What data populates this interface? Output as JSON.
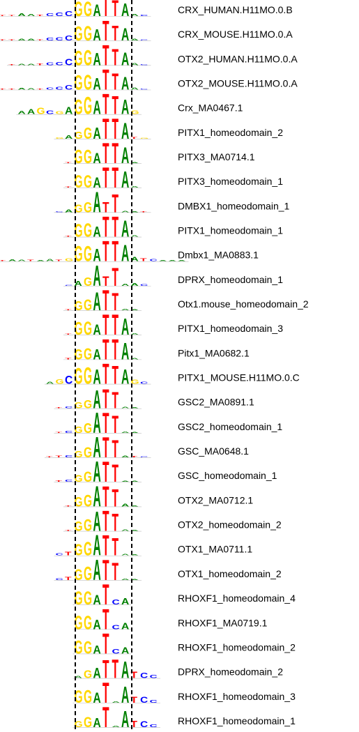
{
  "colors": {
    "A": "#008000",
    "C": "#0000ff",
    "G": "#ffd700",
    "T": "#ff0000",
    "baseline": "#444444"
  },
  "motifs": [
    {
      "label": "CRX_HUMAN.H11MO.0.B",
      "sequence": "ttaatcccGGATTAac",
      "heights": [
        0.03,
        0.05,
        0.12,
        0.1,
        0.06,
        0.14,
        0.18,
        0.25,
        0.72,
        0.72,
        0.58,
        1.0,
        0.78,
        0.62,
        0.1,
        0.06
      ]
    },
    {
      "label": "CRX_MOUSE.H11MO.0.A",
      "sequence": "ttaatcccGGATTAac",
      "heights": [
        0.02,
        0.04,
        0.08,
        0.08,
        0.05,
        0.12,
        0.16,
        0.24,
        0.68,
        0.72,
        0.56,
        0.98,
        0.74,
        0.6,
        0.08,
        0.05
      ]
    },
    {
      "label": "OTX2_HUMAN.H11MO.0.A",
      "sequence": "taatcccGGATTAac",
      "heights": [
        0.03,
        0.06,
        0.06,
        0.08,
        0.12,
        0.16,
        0.3,
        0.7,
        0.76,
        0.6,
        1.0,
        0.8,
        0.62,
        0.1,
        0.05
      ]
    },
    {
      "label": "OTX2_MOUSE.H11MO.0.A",
      "sequence": "ttaatcccGGATTAac",
      "heights": [
        0.03,
        0.05,
        0.08,
        0.06,
        0.05,
        0.1,
        0.14,
        0.22,
        0.7,
        0.74,
        0.58,
        1.0,
        0.8,
        0.62,
        0.1,
        0.05
      ]
    },
    {
      "label": "Crx_MA0467.1",
      "sequence": "aagcgaGGATTAg",
      "heights": [
        0.15,
        0.25,
        0.3,
        0.18,
        0.14,
        0.36,
        0.72,
        0.84,
        0.66,
        1.0,
        0.9,
        0.7,
        0.18
      ]
    },
    {
      "label": "PITX1_homeodomain_2",
      "sequence": "gagGATTAtg",
      "heights": [
        0.06,
        0.18,
        0.35,
        0.55,
        0.55,
        1.0,
        1.0,
        0.78,
        0.08,
        0.05
      ]
    },
    {
      "label": "PITX3_MA0714.1",
      "sequence": "tgGATTAa",
      "heights": [
        0.05,
        0.66,
        0.66,
        0.5,
        1.0,
        1.0,
        0.78,
        0.05
      ]
    },
    {
      "label": "PITX3_homeodomain_1",
      "sequence": "tgGATTAa",
      "heights": [
        0.05,
        0.6,
        0.6,
        0.5,
        1.0,
        1.0,
        0.8,
        0.06
      ]
    },
    {
      "label": "DMBX1_homeodomain_1",
      "sequence": "cagGATTAat",
      "heights": [
        0.04,
        0.12,
        0.38,
        0.52,
        1.0,
        0.5,
        0.9,
        0.06,
        0.05,
        0.03
      ]
    },
    {
      "label": "PITX1_homeodomain_1",
      "sequence": "tgGATTAa",
      "heights": [
        0.05,
        0.62,
        0.66,
        0.5,
        1.0,
        1.0,
        0.8,
        0.06
      ]
    },
    {
      "label": "Dmbx1_MA0883.1",
      "sequence": "ctaataatgGGATTAatcaaa",
      "heights": [
        0.06,
        0.05,
        0.08,
        0.06,
        0.06,
        0.04,
        0.1,
        0.06,
        0.12,
        0.76,
        0.76,
        0.6,
        1.0,
        1.0,
        0.8,
        0.2,
        0.14,
        0.1,
        0.05,
        0.04,
        0.03
      ]
    },
    {
      "label": "DPRX_homeodomain_1",
      "sequence": "cagATTAac",
      "heights": [
        0.04,
        0.25,
        0.42,
        1.0,
        0.46,
        0.9,
        0.1,
        0.12,
        0.08
      ]
    },
    {
      "label": "Otx1.mouse_homeodomain_2",
      "sequence": "tgGATTAa",
      "heights": [
        0.05,
        0.44,
        0.54,
        0.9,
        1.0,
        0.84,
        0.06,
        0.04
      ]
    },
    {
      "label": "PITX1_homeodomain_3",
      "sequence": "tgGATTAa",
      "heights": [
        0.05,
        0.62,
        0.64,
        0.52,
        1.0,
        1.0,
        0.8,
        0.06
      ]
    },
    {
      "label": "Pitx1_MA0682.1",
      "sequence": "tgGATTAa",
      "heights": [
        0.06,
        0.5,
        0.56,
        0.52,
        1.0,
        1.0,
        0.82,
        0.06
      ]
    },
    {
      "label": "PITX1_MOUSE.H11MO.0.C",
      "sequence": "agcGGATTAgc",
      "heights": [
        0.1,
        0.22,
        0.4,
        0.78,
        0.82,
        0.72,
        1.0,
        0.9,
        0.7,
        0.2,
        0.1
      ]
    },
    {
      "label": "GSC2_MA0891.1",
      "sequence": "tcgGATTAa",
      "heights": [
        0.04,
        0.08,
        0.28,
        0.4,
        0.9,
        0.94,
        0.8,
        0.06,
        0.04
      ]
    },
    {
      "label": "GSC2_homeodomain_1",
      "sequence": "tcgGATTAa",
      "heights": [
        0.04,
        0.1,
        0.32,
        0.48,
        1.0,
        1.0,
        0.84,
        0.06,
        0.04
      ]
    },
    {
      "label": "GSC_MA0648.1",
      "sequence": "ttcgGATTAtc",
      "heights": [
        0.05,
        0.08,
        0.1,
        0.32,
        0.5,
        1.0,
        1.0,
        0.84,
        0.08,
        0.06,
        0.04
      ]
    },
    {
      "label": "GSC_homeodomain_1",
      "sequence": "tcgGATTAa",
      "heights": [
        0.06,
        0.1,
        0.34,
        0.52,
        1.0,
        1.0,
        0.84,
        0.05,
        0.04
      ]
    },
    {
      "label": "OTX2_MA0712.1",
      "sequence": "tgGATTAa",
      "heights": [
        0.05,
        0.46,
        0.58,
        1.0,
        1.0,
        0.84,
        0.12,
        0.05
      ]
    },
    {
      "label": "OTX2_homeodomain_2",
      "sequence": "tgGATTAa",
      "heights": [
        0.05,
        0.46,
        0.58,
        0.96,
        1.0,
        0.84,
        0.06,
        0.05
      ]
    },
    {
      "label": "OTX1_MA0711.1",
      "sequence": "ctgGATTAa",
      "heights": [
        0.1,
        0.18,
        0.56,
        0.66,
        1.0,
        1.0,
        0.84,
        0.06,
        0.04
      ]
    },
    {
      "label": "OTX1_homeodomain_2",
      "sequence": "ctgGATTAa",
      "heights": [
        0.08,
        0.16,
        0.54,
        0.66,
        1.0,
        1.0,
        0.84,
        0.06,
        0.04
      ]
    },
    {
      "label": "RHOXF1_homeodomain_4",
      "sequence": "GGATcA",
      "heights": [
        0.64,
        0.64,
        0.46,
        1.0,
        0.24,
        0.32
      ]
    },
    {
      "label": "RHOXF1_MA0719.1",
      "sequence": "GGATcA",
      "heights": [
        0.66,
        0.66,
        0.46,
        1.0,
        0.2,
        0.3
      ]
    },
    {
      "label": "RHOXF1_homeodomain_2",
      "sequence": "GGATcA",
      "heights": [
        0.64,
        0.6,
        0.4,
        1.0,
        0.22,
        0.3
      ]
    },
    {
      "label": "DPRX_homeodomain_2",
      "sequence": "aGATTATCc",
      "heights": [
        0.1,
        0.38,
        0.52,
        0.9,
        0.92,
        0.82,
        0.3,
        0.26,
        0.16
      ]
    },
    {
      "label": "RHOXF1_homeodomain_3",
      "sequence": "GGATaATCc",
      "heights": [
        0.6,
        0.62,
        0.5,
        1.0,
        0.06,
        0.8,
        0.28,
        0.28,
        0.14
      ]
    },
    {
      "label": "RHOXF1_homeodomain_1",
      "sequence": "gGATaATCc",
      "heights": [
        0.28,
        0.5,
        0.44,
        1.0,
        0.06,
        0.8,
        0.3,
        0.28,
        0.14
      ]
    }
  ]
}
